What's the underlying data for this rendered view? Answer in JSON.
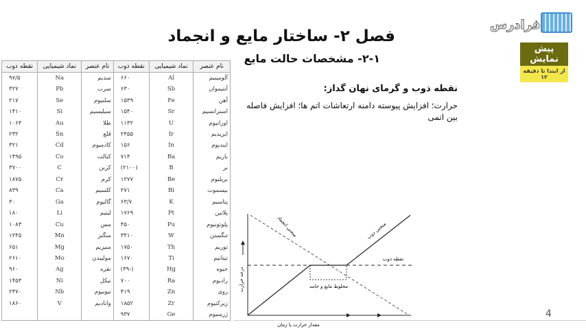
{
  "title": "فصل ۲- ساختار مایع و انجماد",
  "subtitle": "۲-۱- مشخصات حالت مایع",
  "logo": {
    "text": "فرادرس"
  },
  "badge": {
    "label": "پیش نمایش",
    "sub": "از ابتدا تا دقیقه ۱۲",
    "colors": {
      "top": "#6b6b12",
      "bottom": "#f3e64a"
    }
  },
  "section_heading": "نقطه ذوب و گرمای نهان گداز:",
  "paragraph": "حرارت؛ افزایش پیوسته دامنه ارتعاشات اتم ها؛ افزایش فاصله بین اتمی",
  "table": {
    "headers": [
      "نام عنصر",
      "نماد شیمیایی",
      "نقطه ذوب",
      "نام عنصر",
      "نماد شیمیایی",
      "نقطه ذوب"
    ],
    "rows": [
      [
        "آلومینیم",
        "Al",
        "۶۶۰",
        "سدیم",
        "Na",
        "۹۷/۵"
      ],
      [
        "آنتیموان",
        "Sb",
        "۶۳۰",
        "سرب",
        "Pb",
        "۳۲۷"
      ],
      [
        "آهن",
        "Fe",
        "۱۵۳۹",
        "سلنیوم",
        "Se",
        "۲۱۷"
      ],
      [
        "استرانسیم",
        "Sr",
        "۱۵۴۰",
        "سیلیسیم",
        "Si",
        "۱۴۱۰"
      ],
      [
        "اورانیوم",
        "U",
        "۱۱۳۲",
        "طلا",
        "Au",
        "۱۰۶۳"
      ],
      [
        "ایریدیم",
        "Ir",
        "۲۴۵۵",
        "قلع",
        "Sn",
        "۲۳۲"
      ],
      [
        "اینديوم",
        "In",
        "۱۵۶",
        "کادمیوم",
        "Cd",
        "۳۲۱"
      ],
      [
        "باریم",
        "Ba",
        "۷۱۴",
        "کبالت",
        "Co",
        "۱۴۹۵"
      ],
      [
        "بر",
        "B",
        "(۲۱۰۰)",
        "کربن",
        "C",
        "۳۷۰۰"
      ],
      [
        "بریلیوم",
        "Be",
        "۱۲۷۷",
        "کرم",
        "Cr",
        "۱۸۷۵"
      ],
      [
        "بیسموت",
        "Bi",
        "۲۷۱",
        "کلسیم",
        "Ca",
        "۸۳۹"
      ],
      [
        "پتاسیم",
        "K",
        "۶۳/۷",
        "گالیوم",
        "Ga",
        "۳۰"
      ],
      [
        "پلاتین",
        "Pt",
        "۱۷۶۹",
        "لیتیم",
        "Li",
        "۱۸۰"
      ],
      [
        "پلوتونیوم",
        "Pu",
        "۴۵۰",
        "مس",
        "Cu",
        "۱۰۸۳"
      ],
      [
        "تنگستن",
        "W",
        "۳۴۱۰",
        "منگنز",
        "Mn",
        "۱۲۴۵"
      ],
      [
        "توریم",
        "Th",
        "۱۷۵۰",
        "منیزیم",
        "Mg",
        "۶۵۱"
      ],
      [
        "تیتانیم",
        "Ti",
        "۱۶۷۰",
        "مولیبدن",
        "Mo",
        "۲۶۱۰"
      ],
      [
        "جیوه",
        "Hg",
        "(-۳۹)",
        "نقره",
        "Ag",
        "۹۶۰"
      ],
      [
        "رادیوم",
        "Ra",
        "۷۰۰",
        "نیکل",
        "Ni",
        "۱۴۵۳"
      ],
      [
        "روی",
        "Zn",
        "۴۱۹",
        "نیوبیوم",
        "Nb",
        "۲۴۷۰"
      ],
      [
        "زیرکنیوم",
        "Zr",
        "۱۸۵۲",
        "وانادیم",
        "V",
        "۱۸۶۰"
      ],
      [
        "ژرمنیوم",
        "Ge",
        "۹۳۷",
        "",
        "",
        ""
      ]
    ]
  },
  "diagram": {
    "freezing_curve": "منحنی انجماد",
    "melting_curve": "منحنی ذوب",
    "melting_point": "نقطه ذوب",
    "mixture": "مخلوط مایع و جامد",
    "y_axis": "درجه حرارت",
    "x_axis": "مقدار حرارت یا زمان"
  },
  "page_number": "4"
}
